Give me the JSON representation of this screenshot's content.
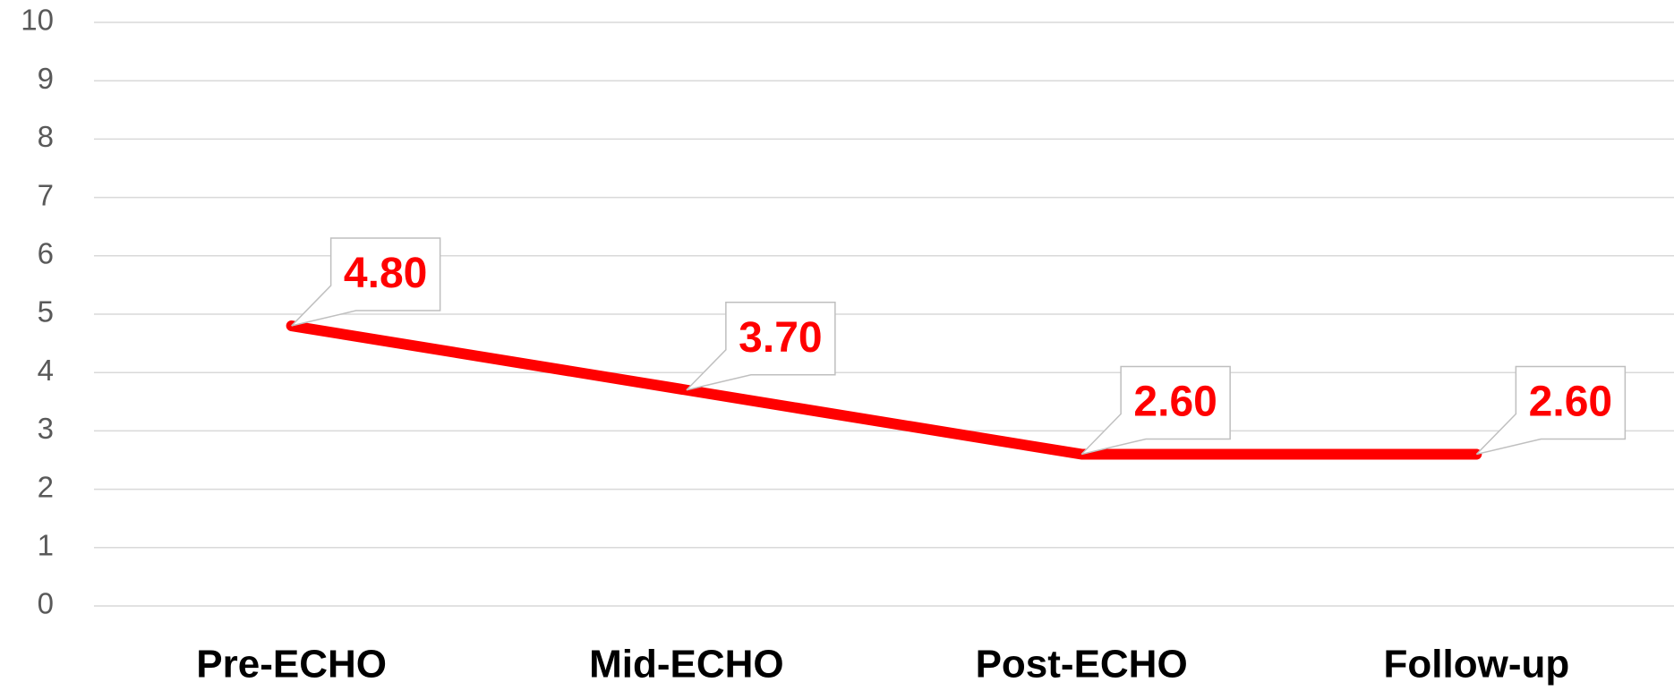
{
  "chart_data": {
    "type": "line",
    "categories": [
      "Pre-ECHO",
      "Mid-ECHO",
      "Post-ECHO",
      "Follow-up"
    ],
    "series": [
      {
        "color": "#ff0000",
        "values": [
          4.8,
          3.7,
          2.6,
          2.6
        ],
        "value_labels": [
          "4.80",
          "3.70",
          "2.60",
          "2.60"
        ]
      }
    ],
    "ylim": [
      0,
      10
    ],
    "yticks": [
      0,
      1,
      2,
      3,
      4,
      5,
      6,
      7,
      8,
      9,
      10
    ],
    "grid": true
  }
}
